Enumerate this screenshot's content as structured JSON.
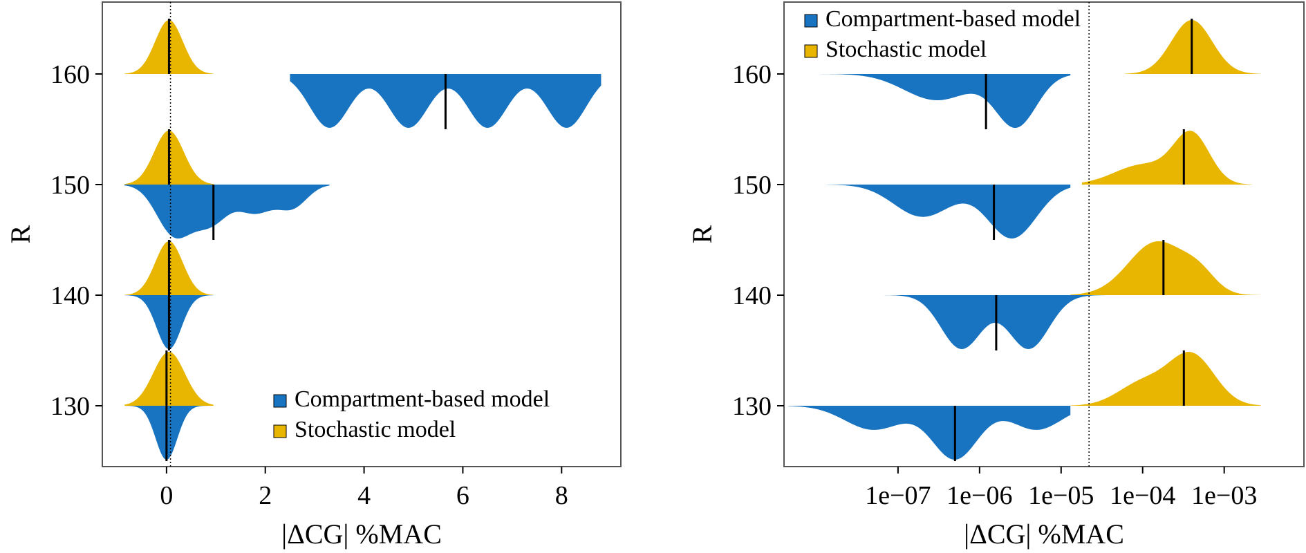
{
  "colors": {
    "compartment": "#1874c0",
    "stochastic": "#e8b600",
    "median_line": "#000000",
    "frame": "#555555"
  },
  "chart_data": [
    {
      "type": "violin",
      "orientation": "horizontal-split",
      "xlabel": "|ΔCG| %MAC",
      "ylabel": "R",
      "xlim": [
        -1.3,
        9.2
      ],
      "ylim": [
        124.5,
        166.5
      ],
      "xticks": [
        0,
        2,
        4,
        6,
        8
      ],
      "xtick_labels": [
        "0",
        "2",
        "4",
        "6",
        "8"
      ],
      "yticks": [
        130,
        140,
        150,
        160
      ],
      "ytick_labels": [
        "130",
        "140",
        "150",
        "160"
      ],
      "reference_line_x": 0.08,
      "legend": {
        "position": "bottom-right",
        "entries": [
          {
            "label": "Compartment-based model",
            "color_key": "compartment"
          },
          {
            "label": "Stochastic model",
            "color_key": "stochastic"
          }
        ]
      },
      "series": [
        {
          "name": "Stochastic model",
          "side": "above",
          "groups": [
            {
              "R": 130,
              "range": [
                -0.85,
                0.95
              ],
              "median": 0.05,
              "modes": [
                [
                  0.05,
                  0.32,
                  1.0
                ]
              ]
            },
            {
              "R": 140,
              "range": [
                -0.85,
                0.95
              ],
              "median": 0.05,
              "modes": [
                [
                  0.05,
                  0.28,
                  1.0
                ]
              ]
            },
            {
              "R": 150,
              "range": [
                -0.85,
                0.95
              ],
              "median": 0.05,
              "modes": [
                [
                  0.05,
                  0.3,
                  1.0
                ]
              ]
            },
            {
              "R": 160,
              "range": [
                -0.85,
                0.95
              ],
              "median": 0.05,
              "modes": [
                [
                  0.05,
                  0.28,
                  1.0
                ]
              ]
            }
          ]
        },
        {
          "name": "Compartment-based model",
          "side": "below",
          "groups": [
            {
              "R": 130,
              "range": [
                -0.85,
                0.95
              ],
              "median": -0.02,
              "modes": [
                [
                  0.0,
                  0.22,
                  1.0
                ]
              ]
            },
            {
              "R": 140,
              "range": [
                -0.85,
                0.95
              ],
              "median": 0.05,
              "modes": [
                [
                  0.05,
                  0.25,
                  1.0
                ]
              ]
            },
            {
              "R": 150,
              "range": [
                -0.85,
                3.3
              ],
              "median": 0.95,
              "modes": [
                [
                  0.15,
                  0.35,
                  1.0
                ],
                [
                  0.9,
                  0.35,
                  0.75
                ],
                [
                  1.8,
                  0.35,
                  0.55
                ],
                [
                  2.55,
                  0.3,
                  0.45
                ]
              ]
            },
            {
              "R": 160,
              "range": [
                2.5,
                8.8
              ],
              "median": 5.65,
              "modes": [
                [
                  3.3,
                  0.4,
                  1.0
                ],
                [
                  4.9,
                  0.4,
                  1.0
                ],
                [
                  6.5,
                  0.4,
                  1.0
                ],
                [
                  8.1,
                  0.4,
                  1.0
                ]
              ]
            }
          ]
        }
      ],
      "medians": [
        {
          "R": 130,
          "x": 0.0,
          "span": [
            125,
            135
          ]
        },
        {
          "R": 140,
          "x": 0.05,
          "span": [
            135,
            145
          ]
        },
        {
          "R": 150,
          "x": 0.95,
          "span": [
            145,
            150
          ]
        },
        {
          "R": 150,
          "x": 0.05,
          "span": [
            150,
            155
          ]
        },
        {
          "R": 160,
          "x": 5.65,
          "span": [
            155,
            160
          ]
        },
        {
          "R": 160,
          "x": 0.05,
          "span": [
            160,
            165
          ]
        }
      ]
    },
    {
      "type": "violin",
      "orientation": "horizontal-split",
      "xscale": "log",
      "xlabel": "|ΔCG| %MAC",
      "ylabel": "R",
      "xlim": [
        4e-09,
        0.0095
      ],
      "ylim": [
        124.5,
        166.5
      ],
      "xticks": [
        1e-07,
        1e-06,
        1e-05,
        0.0001,
        0.001
      ],
      "xtick_labels": [
        "1e−07",
        "1e−06",
        "1e−05",
        "1e−04",
        "1e−03"
      ],
      "yticks": [
        130,
        140,
        150,
        160
      ],
      "ytick_labels": [
        "130",
        "140",
        "150",
        "160"
      ],
      "reference_line_x": 2.2e-05,
      "legend": {
        "position": "top-left",
        "entries": [
          {
            "label": "Compartment-based model",
            "color_key": "compartment"
          },
          {
            "label": "Stochastic model",
            "color_key": "stochastic"
          }
        ]
      },
      "series": [
        {
          "name": "Stochastic model",
          "side": "above",
          "groups": [
            {
              "R": 130,
              "range": [
                1.3e-05,
                0.0028
              ],
              "median": 0.00032,
              "modes": [
                [
                  0.0004,
                  0.28,
                  1.0
                ],
                [
                  0.0001,
                  0.3,
                  0.45
                ]
              ]
            },
            {
              "R": 140,
              "range": [
                1.3e-05,
                0.0028
              ],
              "median": 0.00018,
              "modes": [
                [
                  0.00015,
                  0.35,
                  1.0
                ],
                [
                  0.0005,
                  0.2,
                  0.3
                ]
              ]
            },
            {
              "R": 150,
              "range": [
                1.8e-05,
                0.0022
              ],
              "median": 0.00032,
              "modes": [
                [
                  0.0004,
                  0.22,
                  1.0
                ],
                [
                  0.0001,
                  0.35,
                  0.4
                ]
              ]
            },
            {
              "R": 160,
              "range": [
                6e-05,
                0.0028
              ],
              "median": 0.0004,
              "modes": [
                [
                  0.0004,
                  0.25,
                  1.0
                ]
              ]
            }
          ]
        },
        {
          "name": "Compartment-based model",
          "side": "below",
          "groups": [
            {
              "R": 130,
              "range": [
                4.5e-09,
                1.3e-05
              ],
              "median": 5e-07,
              "modes": [
                [
                  5e-07,
                  0.28,
                  1.0
                ],
                [
                  5e-08,
                  0.35,
                  0.45
                ],
                [
                  5e-06,
                  0.3,
                  0.45
                ]
              ]
            },
            {
              "R": 140,
              "range": [
                3.5e-08,
                3.5e-05
              ],
              "median": 1.6e-06,
              "modes": [
                [
                  6e-07,
                  0.25,
                  0.95
                ],
                [
                  4e-06,
                  0.25,
                  0.95
                ]
              ]
            },
            {
              "R": 150,
              "range": [
                1.3e-08,
                1.3e-05
              ],
              "median": 1.5e-06,
              "modes": [
                [
                  2.5e-06,
                  0.3,
                  1.0
                ],
                [
                  2e-07,
                  0.35,
                  0.6
                ]
              ]
            },
            {
              "R": 160,
              "range": [
                6e-09,
                1.3e-05
              ],
              "median": 1.2e-06,
              "modes": [
                [
                  2.8e-06,
                  0.25,
                  1.0
                ],
                [
                  3e-07,
                  0.4,
                  0.5
                ]
              ]
            }
          ]
        }
      ],
      "medians": [
        {
          "R": 130,
          "x": 5e-07,
          "span": [
            125,
            130
          ]
        },
        {
          "R": 130,
          "x": 0.00032,
          "span": [
            130,
            135
          ]
        },
        {
          "R": 140,
          "x": 1.6e-06,
          "span": [
            135,
            140
          ]
        },
        {
          "R": 140,
          "x": 0.00018,
          "span": [
            140,
            145
          ]
        },
        {
          "R": 150,
          "x": 1.5e-06,
          "span": [
            145,
            150
          ]
        },
        {
          "R": 150,
          "x": 0.00032,
          "span": [
            150,
            155
          ]
        },
        {
          "R": 160,
          "x": 1.2e-06,
          "span": [
            155,
            160
          ]
        },
        {
          "R": 160,
          "x": 0.0004,
          "span": [
            160,
            165
          ]
        }
      ]
    }
  ]
}
